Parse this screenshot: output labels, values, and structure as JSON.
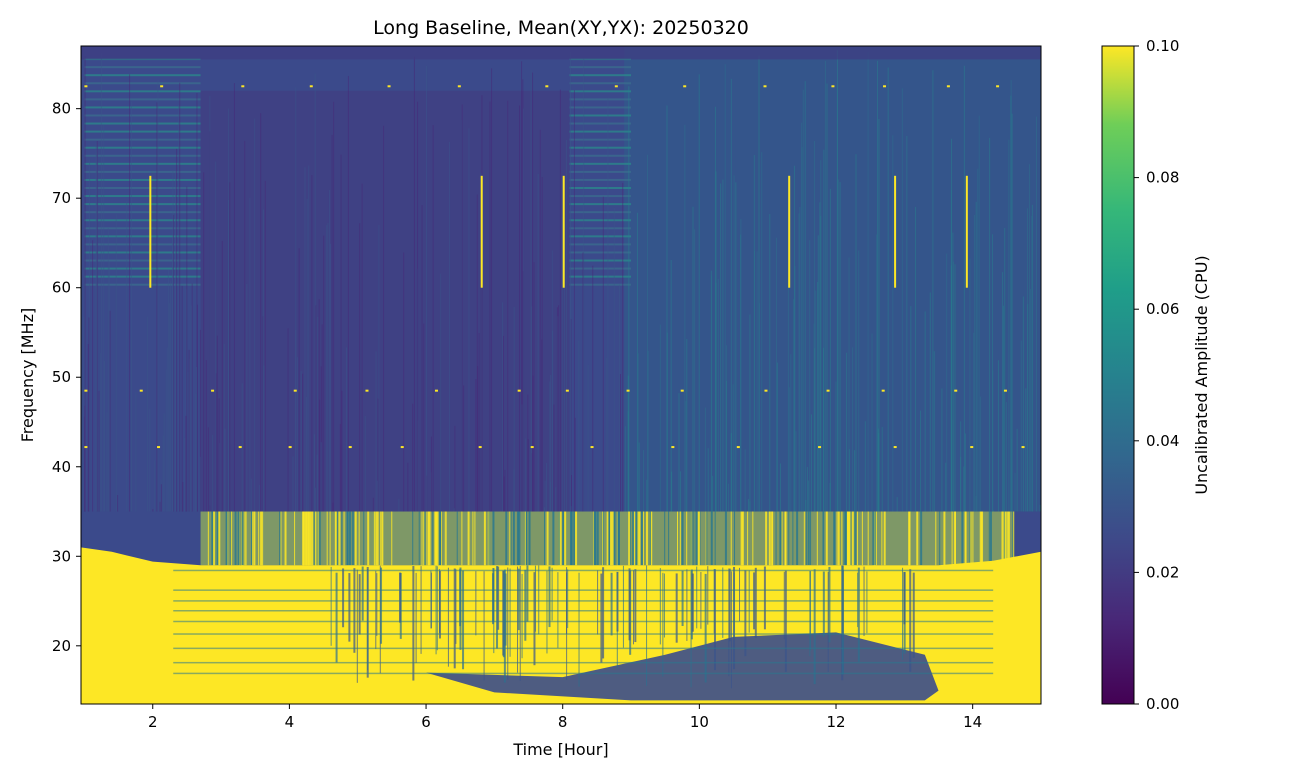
{
  "chart_data": {
    "type": "heatmap",
    "title": "Long Baseline, Mean(XY,YX): 20250320",
    "xlabel": "Time [Hour]",
    "ylabel": "Frequency [MHz]",
    "xlim": [
      0.95,
      15.0
    ],
    "ylim": [
      13.5,
      87.0
    ],
    "x_ticks": [
      2,
      4,
      6,
      8,
      10,
      12,
      14
    ],
    "x_tick_labels": [
      "2",
      "4",
      "6",
      "8",
      "10",
      "12",
      "14"
    ],
    "y_ticks": [
      20,
      30,
      40,
      50,
      60,
      70,
      80
    ],
    "y_tick_labels": [
      "20",
      "30",
      "40",
      "50",
      "60",
      "70",
      "80"
    ],
    "colormap": "viridis",
    "colorbar": {
      "label": "Uncalibrated Amplitude (CPU)",
      "vmin": 0.0,
      "vmax": 0.1,
      "ticks": [
        0.0,
        0.02,
        0.04,
        0.06,
        0.08,
        0.1
      ],
      "tick_labels": [
        "0.00",
        "0.02",
        "0.04",
        "0.06",
        "0.08",
        "0.10"
      ]
    },
    "features": {
      "background_level": 0.02,
      "saturated_low_band_upper_mhz": 29,
      "rfi_band_upper_mhz": 35,
      "early_elevated_band_hours": [
        [
          1.0,
          2.7
        ],
        [
          8.1,
          9.0
        ]
      ],
      "bright_vertical_lines_hours": [
        1.95,
        6.8,
        8.0,
        11.3,
        12.85,
        13.9
      ],
      "horizontal_rfi_dots_mhz": [
        82.5,
        48.5,
        42.2
      ]
    }
  },
  "colors": {
    "viridis_low": "#440154",
    "viridis_mid": "#21918c",
    "viridis_high": "#fde725",
    "background_blue": "#3b4d8c"
  }
}
